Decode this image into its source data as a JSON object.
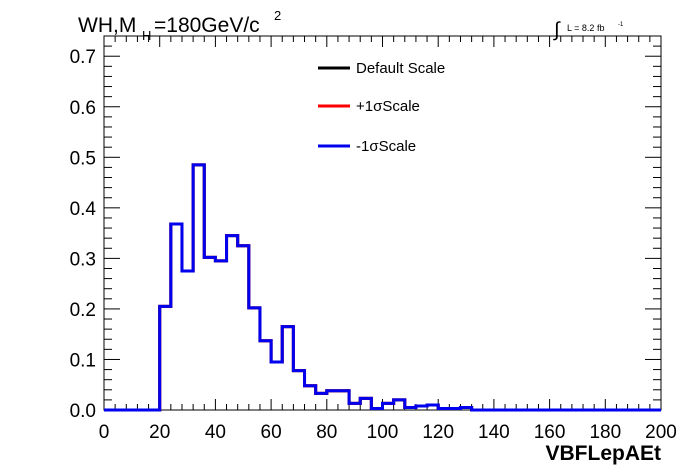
{
  "chart_data": {
    "type": "line",
    "title": {
      "main": "WH,M",
      "subscript": "H",
      "rest": "=180GeV/c",
      "superscript": "2"
    },
    "luminosity": {
      "symbol": "∫",
      "text": "L = 8.2 fb",
      "exponent": "-1"
    },
    "xlabel": "VBFLepAEt",
    "ylabel": "",
    "xlim": [
      0,
      200
    ],
    "ylim": [
      0,
      0.74
    ],
    "x_ticks": [
      "0",
      "20",
      "40",
      "60",
      "80",
      "100",
      "120",
      "140",
      "160",
      "180",
      "200"
    ],
    "y_ticks": [
      "0.0",
      "0.1",
      "0.2",
      "0.3",
      "0.4",
      "0.5",
      "0.6",
      "0.7"
    ],
    "grid": false,
    "legend_position": "top-center",
    "bin_width": 4,
    "bin_edges_start": 0,
    "series": [
      {
        "name": "Default Scale",
        "color": "#000000",
        "values": [
          0,
          0,
          0,
          0,
          0,
          0.205,
          0.368,
          0.275,
          0.485,
          0.302,
          0.295,
          0.345,
          0.325,
          0.202,
          0.137,
          0.095,
          0.165,
          0.078,
          0.048,
          0.033,
          0.038,
          0.038,
          0.013,
          0.023,
          0.003,
          0.013,
          0.02,
          0.005,
          0.008,
          0.01,
          0.003,
          0.003,
          0.005,
          0,
          0,
          0,
          0,
          0,
          0,
          0,
          0,
          0,
          0,
          0,
          0,
          0,
          0,
          0,
          0,
          0
        ]
      },
      {
        "name": "+1σScale",
        "color": "#ff0000",
        "values": [
          0,
          0,
          0,
          0,
          0,
          0.205,
          0.368,
          0.275,
          0.485,
          0.302,
          0.295,
          0.345,
          0.325,
          0.202,
          0.137,
          0.095,
          0.165,
          0.078,
          0.048,
          0.033,
          0.038,
          0.038,
          0.013,
          0.023,
          0.003,
          0.013,
          0.02,
          0.005,
          0.008,
          0.01,
          0.003,
          0.003,
          0.005,
          0,
          0,
          0,
          0,
          0,
          0,
          0,
          0,
          0,
          0,
          0,
          0,
          0,
          0,
          0,
          0,
          0
        ]
      },
      {
        "name": "-1σScale",
        "color": "#0000ee",
        "values": [
          0,
          0,
          0,
          0,
          0,
          0.205,
          0.368,
          0.275,
          0.485,
          0.302,
          0.295,
          0.345,
          0.325,
          0.202,
          0.137,
          0.095,
          0.165,
          0.078,
          0.048,
          0.033,
          0.038,
          0.038,
          0.013,
          0.023,
          0.003,
          0.013,
          0.02,
          0.005,
          0.008,
          0.01,
          0.003,
          0.003,
          0.005,
          0,
          0,
          0,
          0,
          0,
          0,
          0,
          0,
          0,
          0,
          0,
          0,
          0,
          0,
          0,
          0,
          0
        ]
      }
    ]
  }
}
